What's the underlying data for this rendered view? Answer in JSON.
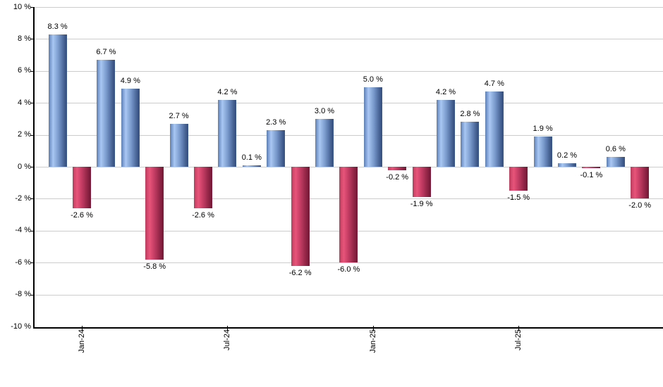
{
  "chart_data": {
    "type": "bar",
    "title": "",
    "unit": "%",
    "values": [
      8.3,
      -2.6,
      6.7,
      4.9,
      -5.8,
      2.7,
      -2.6,
      4.2,
      0.1,
      2.3,
      -6.2,
      3.0,
      -6.0,
      5.0,
      -0.2,
      -1.9,
      4.2,
      2.8,
      4.7,
      -1.5,
      1.9,
      0.2,
      -0.1,
      0.6,
      -2.0
    ],
    "bar_labels": [
      "8.3 %",
      "-2.6 %",
      "6.7 %",
      "4.9 %",
      "-5.8 %",
      "2.7 %",
      "-2.6 %",
      "4.2 %",
      "0.1 %",
      "2.3 %",
      "-6.2 %",
      "3.0 %",
      "-6.0 %",
      "5.0 %",
      "-0.2 %",
      "-1.9 %",
      "4.2 %",
      "2.8 %",
      "4.7 %",
      "-1.5 %",
      "1.9 %",
      "0.2 %",
      "-0.1 %",
      "0.6 %",
      "-2.0 %"
    ],
    "y_axis": {
      "min": -10,
      "max": 10,
      "step": 2,
      "tick_labels": [
        "10 %",
        "8 %",
        "6 %",
        "4 %",
        "2 %",
        "0 %",
        "-2 %",
        "-4 %",
        "-6 %",
        "-8 %",
        "-10 %"
      ]
    },
    "x_axis": {
      "ticks": [
        {
          "label": "Jan-24",
          "bar_index": 1
        },
        {
          "label": "Jul-24",
          "bar_index": 7
        },
        {
          "label": "Jan-25",
          "bar_index": 13
        },
        {
          "label": "Jul-25",
          "bar_index": 19
        }
      ]
    },
    "grid": true,
    "legend": "none",
    "colors": {
      "positive_edge": "#5b7eb5",
      "positive_highlight": "#a9c7f2",
      "positive_main": "#7f9fd2",
      "positive_dark": "#3a5586",
      "negative_edge": "#be3c5f",
      "negative_highlight": "#e8547a",
      "negative_main": "#c23c63",
      "negative_dark": "#7c1c3b",
      "gridline": "#cccccc",
      "axis": "#000000",
      "label_text": "#000000",
      "background": "#ffffff"
    }
  }
}
